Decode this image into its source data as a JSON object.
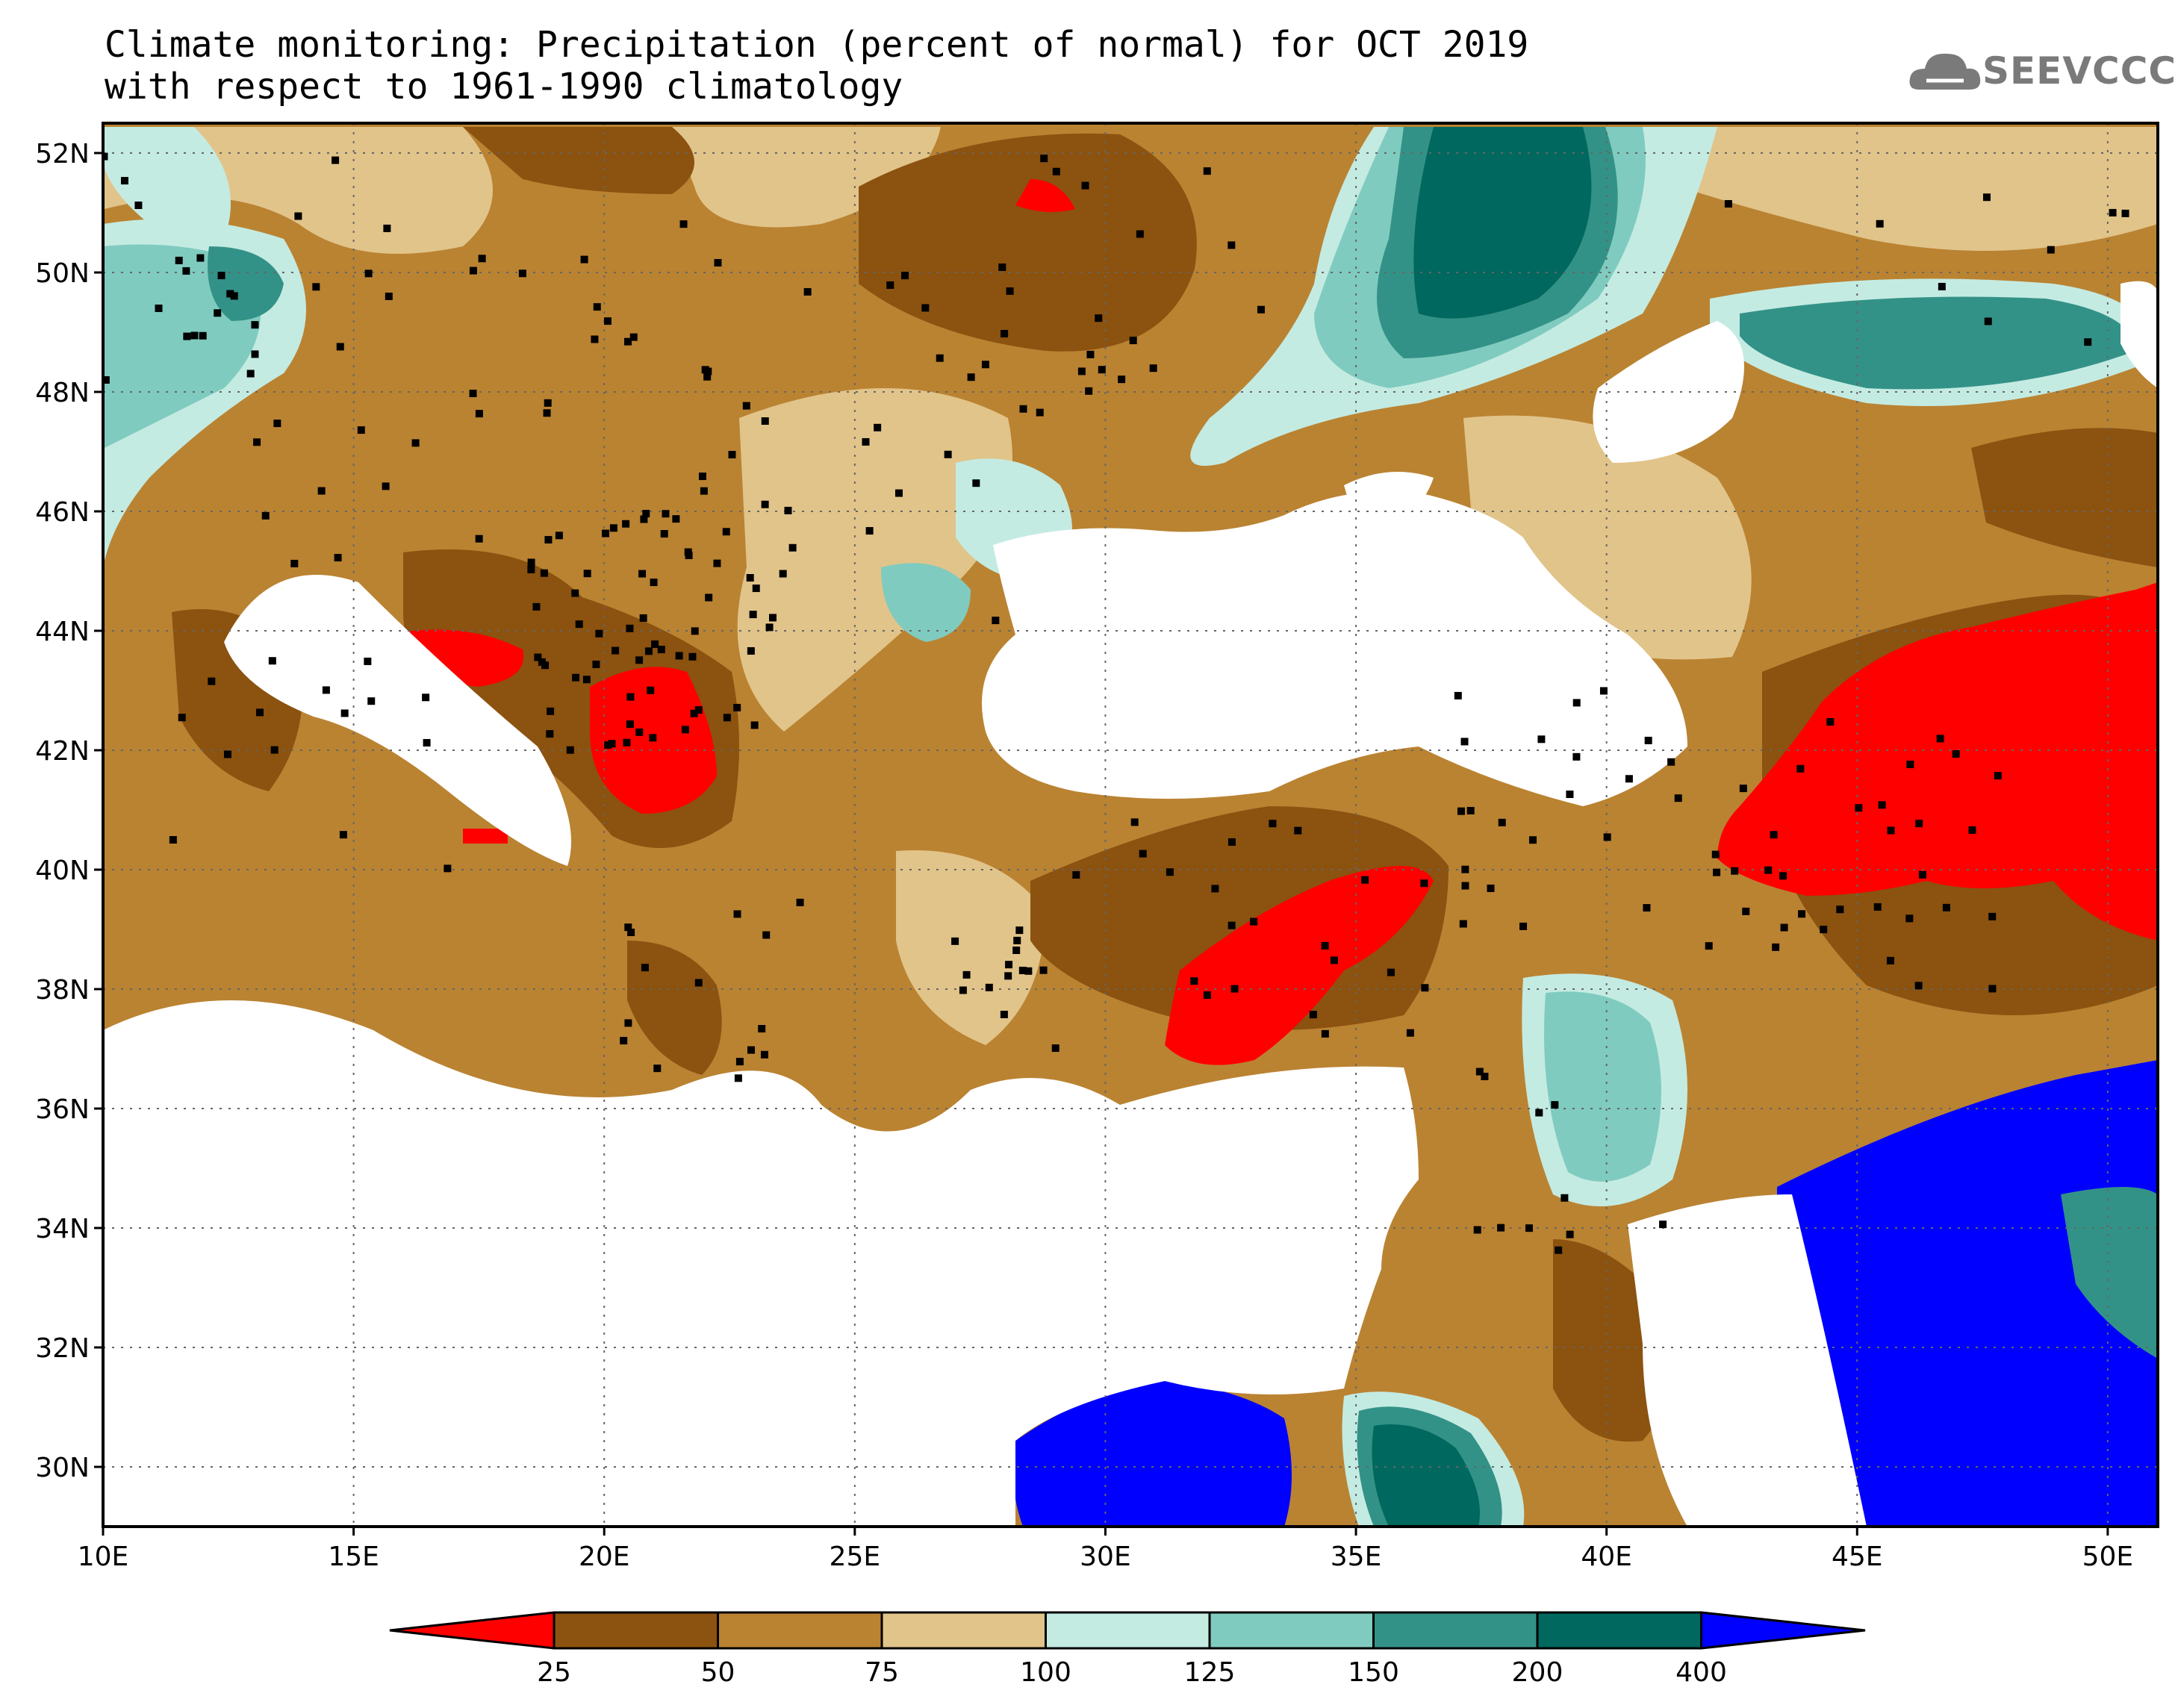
{
  "title": {
    "line1": "Climate monitoring: Precipitation (percent of normal) for OCT 2019",
    "line2": "with respect to 1961-1990 climatology"
  },
  "logo": {
    "text": "SEEVCCC",
    "icon": "cloud-icon"
  },
  "map": {
    "lon_range": [
      10,
      51
    ],
    "lat_range": [
      29,
      52.5
    ],
    "x_ticks": [
      "10E",
      "15E",
      "20E",
      "25E",
      "30E",
      "35E",
      "40E",
      "45E",
      "50E"
    ],
    "y_ticks": [
      "30N",
      "32N",
      "34N",
      "36N",
      "38N",
      "40N",
      "42N",
      "44N",
      "46N",
      "48N",
      "50N",
      "52N"
    ],
    "grid": "dotted"
  },
  "colorbar": {
    "labels": [
      "25",
      "50",
      "75",
      "100",
      "125",
      "150",
      "200",
      "400"
    ],
    "colors": [
      "#ff0000",
      "#8b5210",
      "#ba8332",
      "#e1c48a",
      "#c4ebe2",
      "#80cbbf",
      "#339287",
      "#00685e",
      "#0000ff"
    ]
  }
}
